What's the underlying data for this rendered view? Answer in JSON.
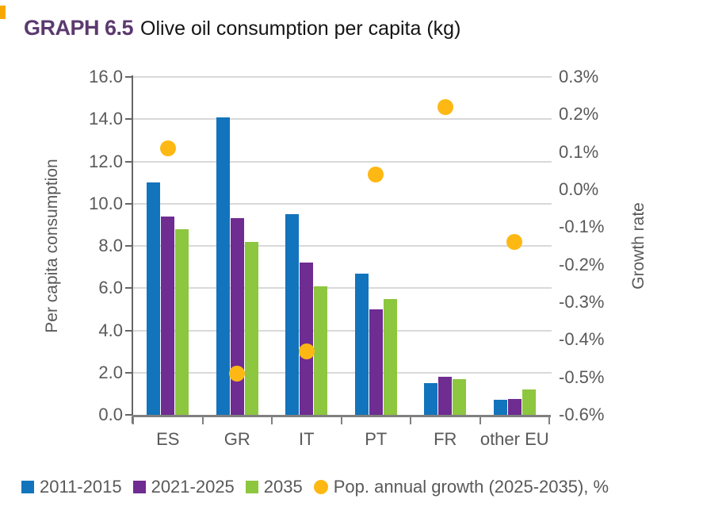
{
  "header": {
    "graph_label": "GRAPH 6.5",
    "title": "Olive oil consumption per capita (kg)"
  },
  "chart_data": {
    "type": "bar",
    "subtype": "grouped-bar-with-secondary-axis-scatter",
    "title": "Olive oil consumption per capita (kg)",
    "categories": [
      "ES",
      "GR",
      "IT",
      "PT",
      "FR",
      "other EU"
    ],
    "series": [
      {
        "name": "2011-2015",
        "type": "bar",
        "axis": "left",
        "color": "#1274BC",
        "values": [
          11.0,
          14.1,
          9.5,
          6.7,
          1.5,
          0.7
        ]
      },
      {
        "name": "2021-2025",
        "type": "bar",
        "axis": "left",
        "color": "#6F2C91",
        "values": [
          9.4,
          9.3,
          7.2,
          5.0,
          1.8,
          0.75
        ]
      },
      {
        "name": "2035",
        "type": "bar",
        "axis": "left",
        "color": "#8DC63F",
        "values": [
          8.8,
          8.2,
          6.1,
          5.5,
          1.7,
          1.2
        ]
      },
      {
        "name": "Pop. annual growth (2025-2035), %",
        "type": "scatter",
        "axis": "right",
        "color": "#FDB813",
        "values": [
          0.11,
          -0.49,
          -0.43,
          0.04,
          0.22,
          -0.14
        ]
      }
    ],
    "left_axis": {
      "label": "Per capita consumption",
      "min": 0,
      "max": 16,
      "step": 2,
      "tick_labels": [
        "16.0",
        "14.0",
        "12.0",
        "10.0",
        "8.0",
        "6.0",
        "4.0",
        "2.0",
        "0.0"
      ]
    },
    "right_axis": {
      "label": "Growth rate",
      "min": -0.6,
      "max": 0.3,
      "step": 0.1,
      "tick_labels": [
        "0.3%",
        "0.2%",
        "0.1%",
        "0.0%",
        "-0.1%",
        "-0.2%",
        "-0.3%",
        "-0.4%",
        "-0.5%",
        "-0.6%"
      ]
    },
    "grid": true,
    "legend_position": "bottom"
  },
  "style": {
    "title_accent_color": "#5B3A6F",
    "axis_text_color": "#595959",
    "gridline_color": "#D9D9D9",
    "axis_line_color": "#808080",
    "accent_mark_color": "#F7A800"
  }
}
